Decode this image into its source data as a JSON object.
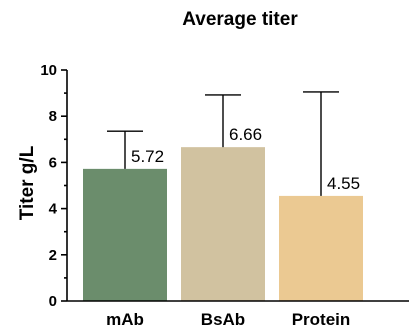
{
  "chart_data": {
    "type": "bar",
    "title": "Average titer",
    "xlabel": "",
    "ylabel": "Titer g/L",
    "ylim": [
      0,
      10
    ],
    "yticks": [
      0,
      2,
      4,
      6,
      8,
      10
    ],
    "categories": [
      "mAb",
      "BsAb",
      "Protein"
    ],
    "values": [
      5.72,
      6.66,
      4.55
    ],
    "value_labels": [
      "5.72",
      "6.66",
      "4.55"
    ],
    "error_upper": [
      7.35,
      8.92,
      9.05
    ],
    "colors": [
      "#6b8d6c",
      "#d1c2a0",
      "#ebc992"
    ],
    "grid": false,
    "legend": false
  }
}
